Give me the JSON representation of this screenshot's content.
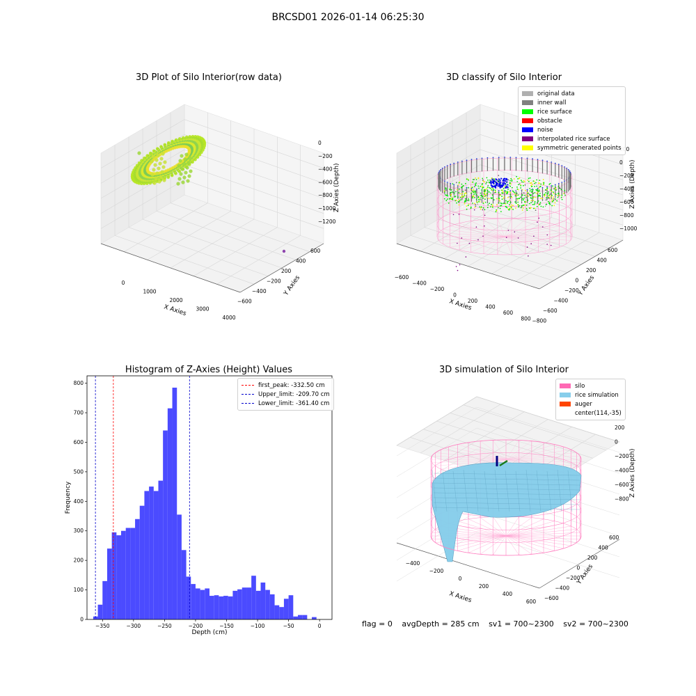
{
  "suptitle": "BRCSD01 2026-01-14 06:25:30",
  "status": {
    "flag": "flag = 0",
    "avg": "avgDepth = 285 cm",
    "sv1": "sv1 = 700~2300",
    "sv2": "sv2 = 700~2300"
  },
  "colors": {
    "hist_bar": "#4b4bff",
    "peak_line": "#ff0000",
    "limit_line": "#0000cc",
    "silo": "#ff69b4",
    "rice": "#87ceeb",
    "auger": "#ff4500"
  },
  "chart_data": [
    {
      "type": "scatter3d",
      "title": "3D Plot of Silo Interior(row data)",
      "xlabel": "X Axies",
      "ylabel": "Y Axies",
      "zlabel": "Z Axies (Depth)",
      "x_ticks": [
        "0",
        "1000",
        "2000",
        "3000",
        "4000"
      ],
      "y_ticks": [
        "600",
        "400",
        "200",
        "−200",
        "−400",
        "−600"
      ],
      "z_ticks": [
        "0",
        "−200",
        "−400",
        "−600",
        "−800",
        "−1000",
        "−1200"
      ],
      "xlim": [
        -500,
        4500
      ],
      "ylim": [
        -700,
        700
      ],
      "zlim": [
        -1300,
        50
      ],
      "colormap": "viridis-yellow",
      "outlier_point": {
        "x": 4100,
        "y": 550,
        "z": -1300
      }
    },
    {
      "type": "scatter3d",
      "title": "3D classify of Silo Interior",
      "xlabel": "X Axies",
      "ylabel": "Y Axies",
      "zlabel": "Z Axies (Depth)",
      "x_ticks": [
        "−600",
        "−400",
        "−200",
        "0",
        "200",
        "400",
        "600",
        "800"
      ],
      "y_ticks": [
        "600",
        "400",
        "200",
        "0",
        "−200",
        "−400",
        "−600",
        "−800"
      ],
      "z_ticks": [
        "200",
        "0",
        "−200",
        "−400",
        "−600",
        "−800",
        "−1000"
      ],
      "legend": [
        {
          "label": "original data",
          "color": "#b0b0b0"
        },
        {
          "label": "inner wall",
          "color": "#808080"
        },
        {
          "label": "rice surface",
          "color": "#00ff00"
        },
        {
          "label": "obstacle",
          "color": "#ff0000"
        },
        {
          "label": "noise",
          "color": "#0000ff"
        },
        {
          "label": "interpolated rice surface",
          "color": "#800080"
        },
        {
          "label": "symmetric generated points",
          "color": "#ffff00"
        }
      ]
    },
    {
      "type": "bar",
      "title": "Histogram of Z-Axies (Height) Values",
      "xlabel": "Depth (cm)",
      "ylabel": "Frequency",
      "xlim": [
        -375,
        20
      ],
      "ylim": [
        0,
        825
      ],
      "x_ticks": [
        -350,
        -300,
        -250,
        -200,
        -150,
        -100,
        -50,
        0
      ],
      "y_ticks": [
        0,
        100,
        200,
        300,
        400,
        500,
        600,
        700,
        800
      ],
      "bin_width": 7.5,
      "bin_start": -365,
      "values": [
        10,
        50,
        130,
        240,
        295,
        285,
        300,
        310,
        310,
        340,
        385,
        435,
        450,
        435,
        470,
        640,
        715,
        785,
        355,
        235,
        145,
        120,
        105,
        100,
        105,
        80,
        82,
        78,
        80,
        78,
        97,
        102,
        108,
        108,
        148,
        97,
        125,
        100,
        85,
        48,
        42,
        70,
        82,
        10,
        15,
        15,
        0,
        8,
        0
      ],
      "vlines": [
        {
          "name": "first_peak",
          "value": -332.5,
          "label": "first_peak: -332.50 cm",
          "color": "#ff0000"
        },
        {
          "name": "upper_limit",
          "value": -209.7,
          "label": "Upper_limit: -209.70 cm",
          "color": "#0000cc"
        },
        {
          "name": "lower_limit",
          "value": -361.4,
          "label": "Lower_limit: -361.40 cm",
          "color": "#0000cc"
        }
      ],
      "legend_position": "top-right"
    },
    {
      "type": "surface3d",
      "title": "3D simulation of Silo Interior",
      "xlabel": "X Axies",
      "ylabel": "Y Axies",
      "zlabel": "Z Axies (Depth)",
      "x_ticks": [
        "−400",
        "−200",
        "0",
        "200",
        "400",
        "600"
      ],
      "y_ticks": [
        "600",
        "400",
        "200",
        "0",
        "−200",
        "−400",
        "−600"
      ],
      "z_ticks": [
        "200",
        "0",
        "−200",
        "−400",
        "−600",
        "−800"
      ],
      "legend": [
        {
          "label": "silo",
          "color": "#ff69b4"
        },
        {
          "label": "rice simulation",
          "color": "#87ceeb"
        },
        {
          "label": "auger",
          "color": "#ff4500"
        },
        {
          "label": "center(114,-35)",
          "color": ""
        }
      ]
    }
  ]
}
